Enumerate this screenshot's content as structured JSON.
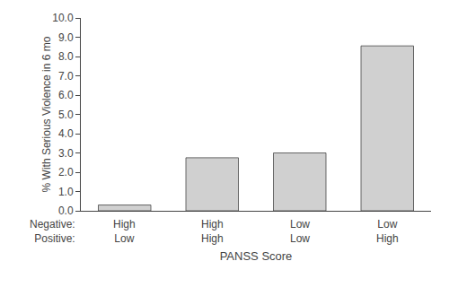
{
  "chart_data": {
    "type": "bar",
    "categories": [
      [
        "High",
        "Low"
      ],
      [
        "High",
        "High"
      ],
      [
        "Low",
        "Low"
      ],
      [
        "Low",
        "High"
      ]
    ],
    "annotations": [
      "Negative:",
      "Positive:"
    ],
    "values": [
      0.3,
      2.75,
      3.0,
      8.55
    ],
    "color": "#d0d0d0",
    "xlabel": "PANSS Score",
    "ylabel": "% With Serious Violence in 6 mo",
    "ylim": [
      0,
      10.0
    ],
    "yticks": [
      {
        "value": 0,
        "label": "0.0"
      },
      {
        "value": 1,
        "label": "1.0"
      },
      {
        "value": 2,
        "label": "2.0"
      },
      {
        "value": 3,
        "label": "3.0"
      },
      {
        "value": 4,
        "label": "4.0"
      },
      {
        "value": 5,
        "label": "5.0"
      },
      {
        "value": 6,
        "label": "6.0"
      },
      {
        "value": 7,
        "label": "7.0"
      },
      {
        "value": 8,
        "label": "8.0"
      },
      {
        "value": 9,
        "label": "9.0"
      },
      {
        "value": 10,
        "label": "10.0"
      }
    ],
    "grid": false
  }
}
